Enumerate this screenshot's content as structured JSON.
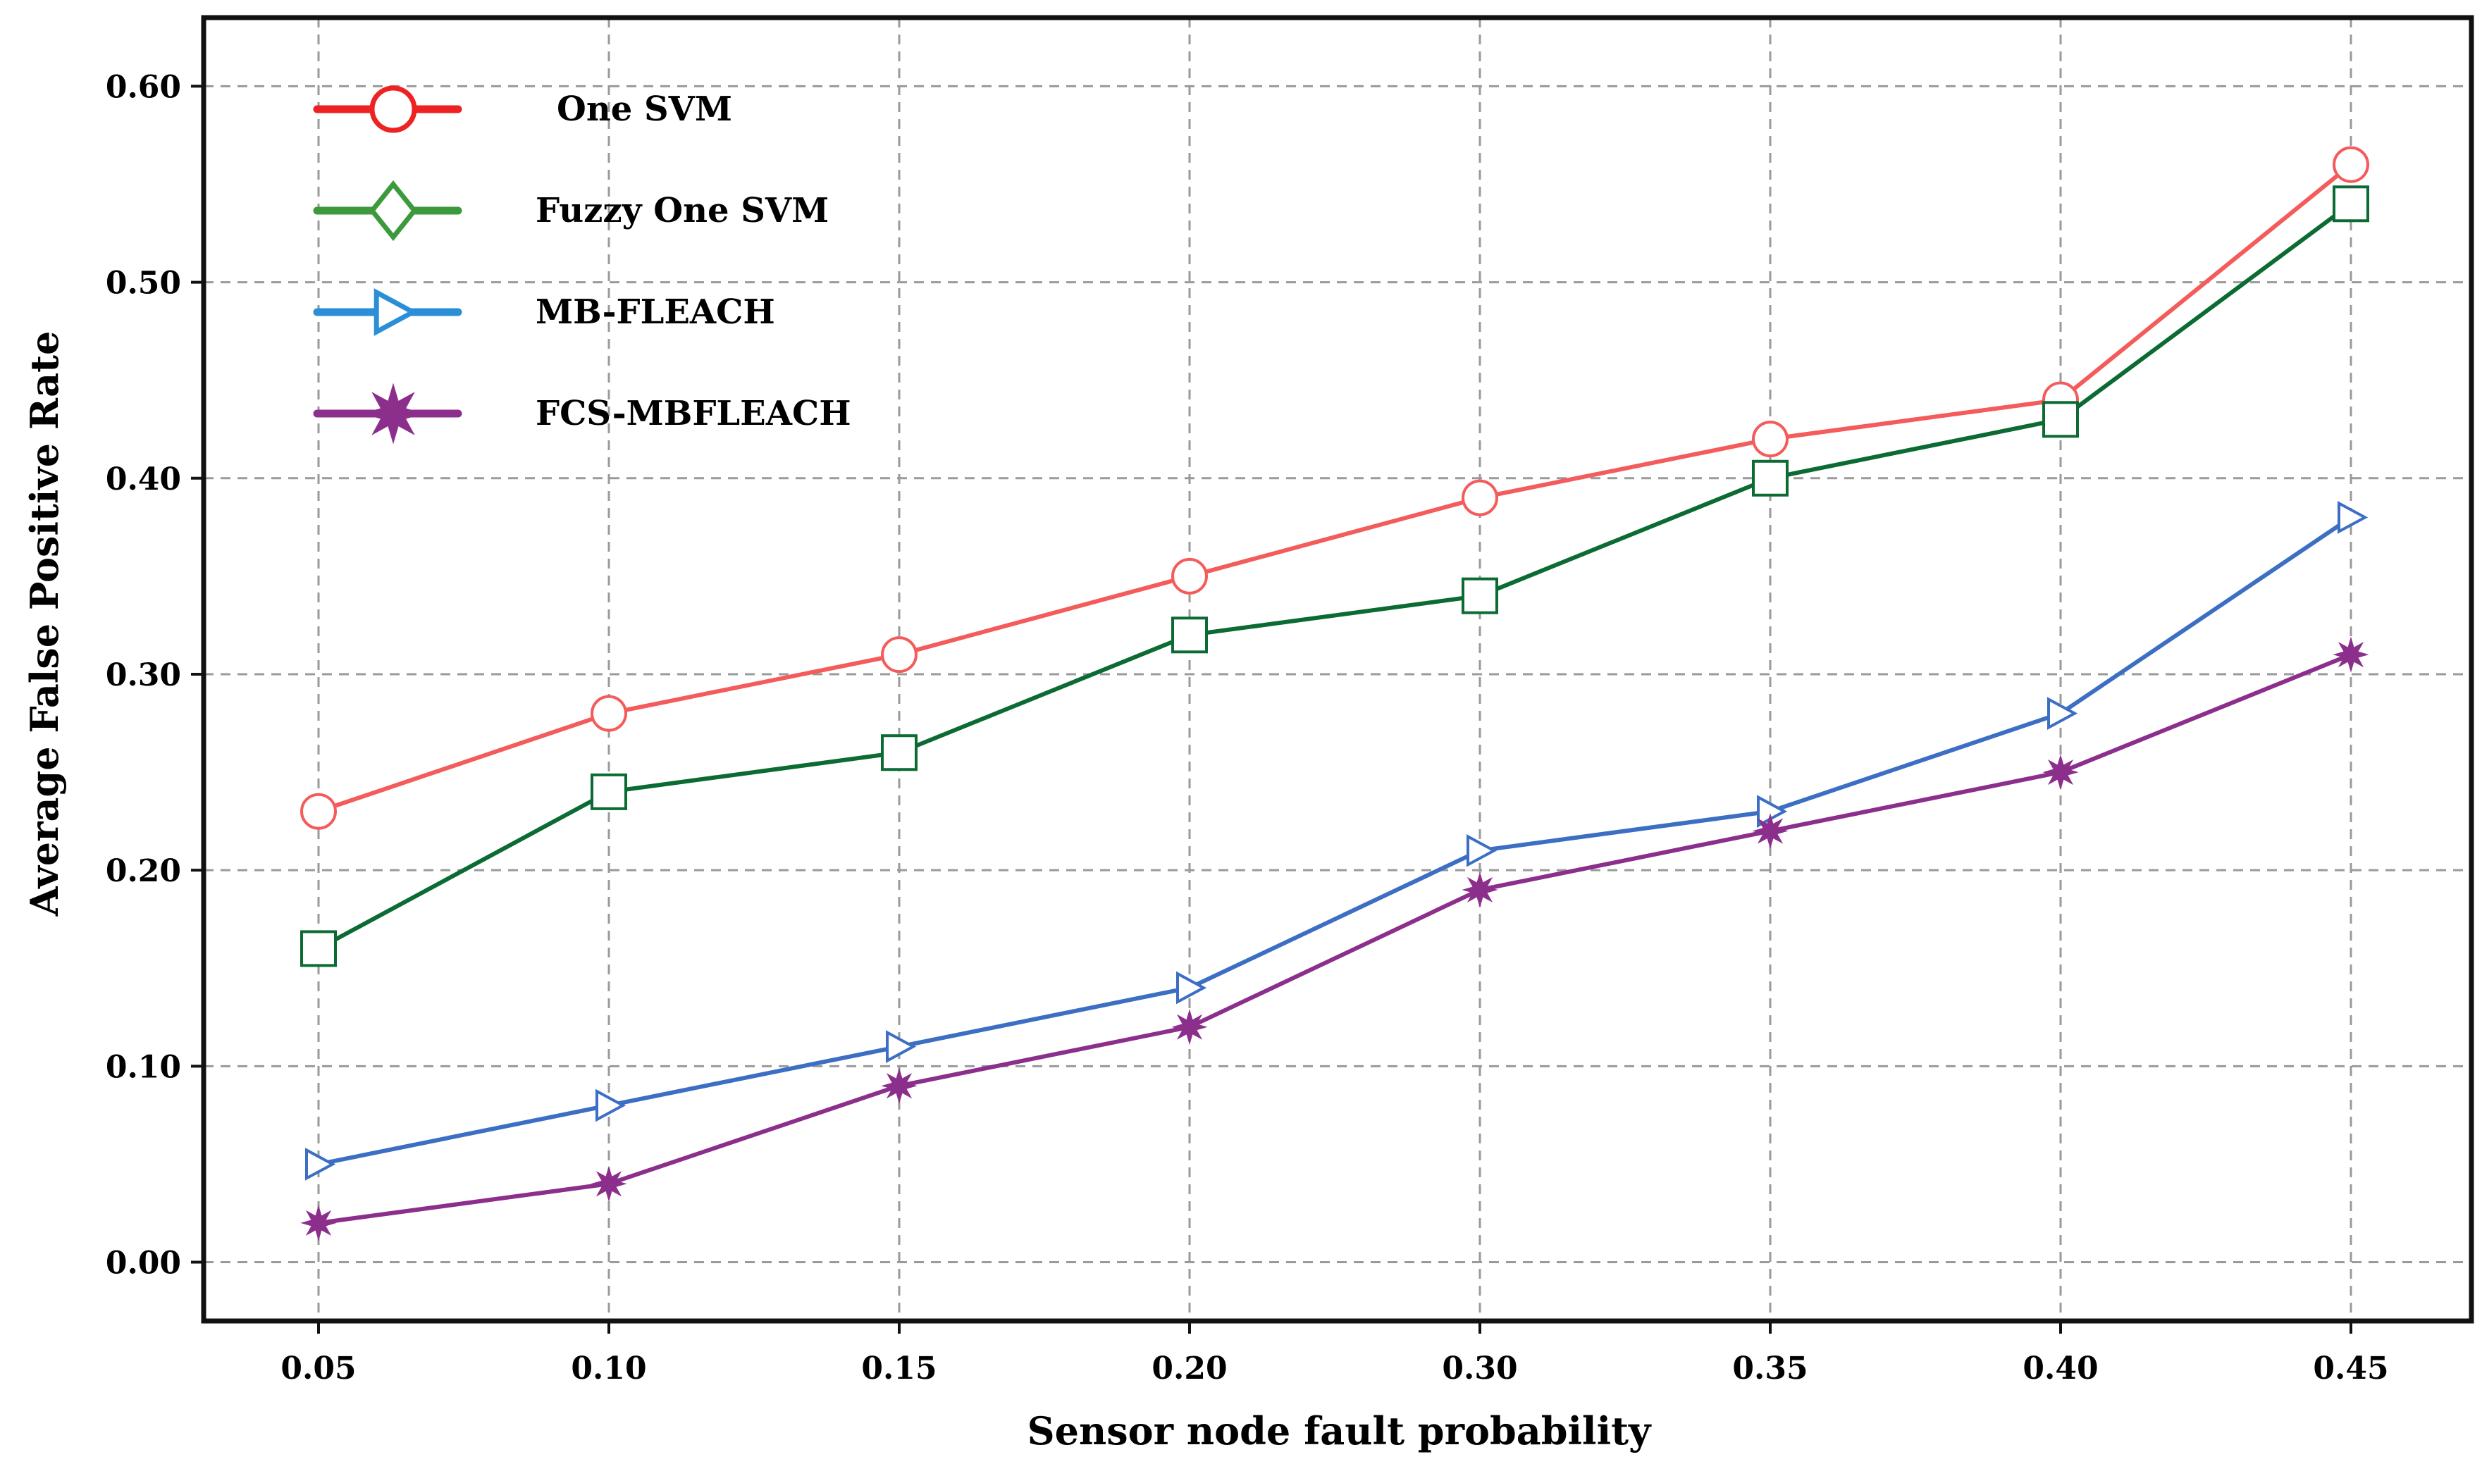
{
  "chart_data": {
    "type": "line",
    "title": "",
    "xlabel": "Sensor node fault probability",
    "ylabel": "Average False Positive Rate",
    "categories": [
      "0.05",
      "0.10",
      "0.15",
      "0.20",
      "0.30",
      "0.35",
      "0.40",
      "0.45"
    ],
    "yticks": [
      "0.00",
      "0.10",
      "0.20",
      "0.30",
      "0.40",
      "0.50",
      "0.60"
    ],
    "ylim": [
      -0.03,
      0.635
    ],
    "grid": true,
    "legend_position": "top-left",
    "series": [
      {
        "name": "One SVM",
        "marker": "circle",
        "legend_marker": "circle",
        "color": "#f45b5b",
        "legend_color": "#ee2222",
        "values": [
          0.23,
          0.28,
          0.31,
          0.35,
          0.39,
          0.42,
          0.44,
          0.56
        ]
      },
      {
        "name": "Fuzzy One SVM",
        "marker": "square",
        "legend_marker": "diamond",
        "color": "#0b6b33",
        "legend_color": "#3c9a3c",
        "values": [
          0.16,
          0.24,
          0.26,
          0.32,
          0.34,
          0.4,
          0.43,
          0.54
        ]
      },
      {
        "name": "MB-FLEACH",
        "marker": "triangle-right",
        "legend_marker": "triangle-right",
        "color": "#3c6fc4",
        "legend_color": "#2a8fd6",
        "values": [
          0.05,
          0.08,
          0.11,
          0.14,
          0.21,
          0.23,
          0.28,
          0.38
        ]
      },
      {
        "name": "FCS-MBFLEACH",
        "marker": "star",
        "legend_marker": "star",
        "color": "#8c2f8c",
        "legend_color": "#8c2f8c",
        "values": [
          0.02,
          0.04,
          0.09,
          0.12,
          0.19,
          0.22,
          0.25,
          0.31
        ]
      }
    ]
  }
}
